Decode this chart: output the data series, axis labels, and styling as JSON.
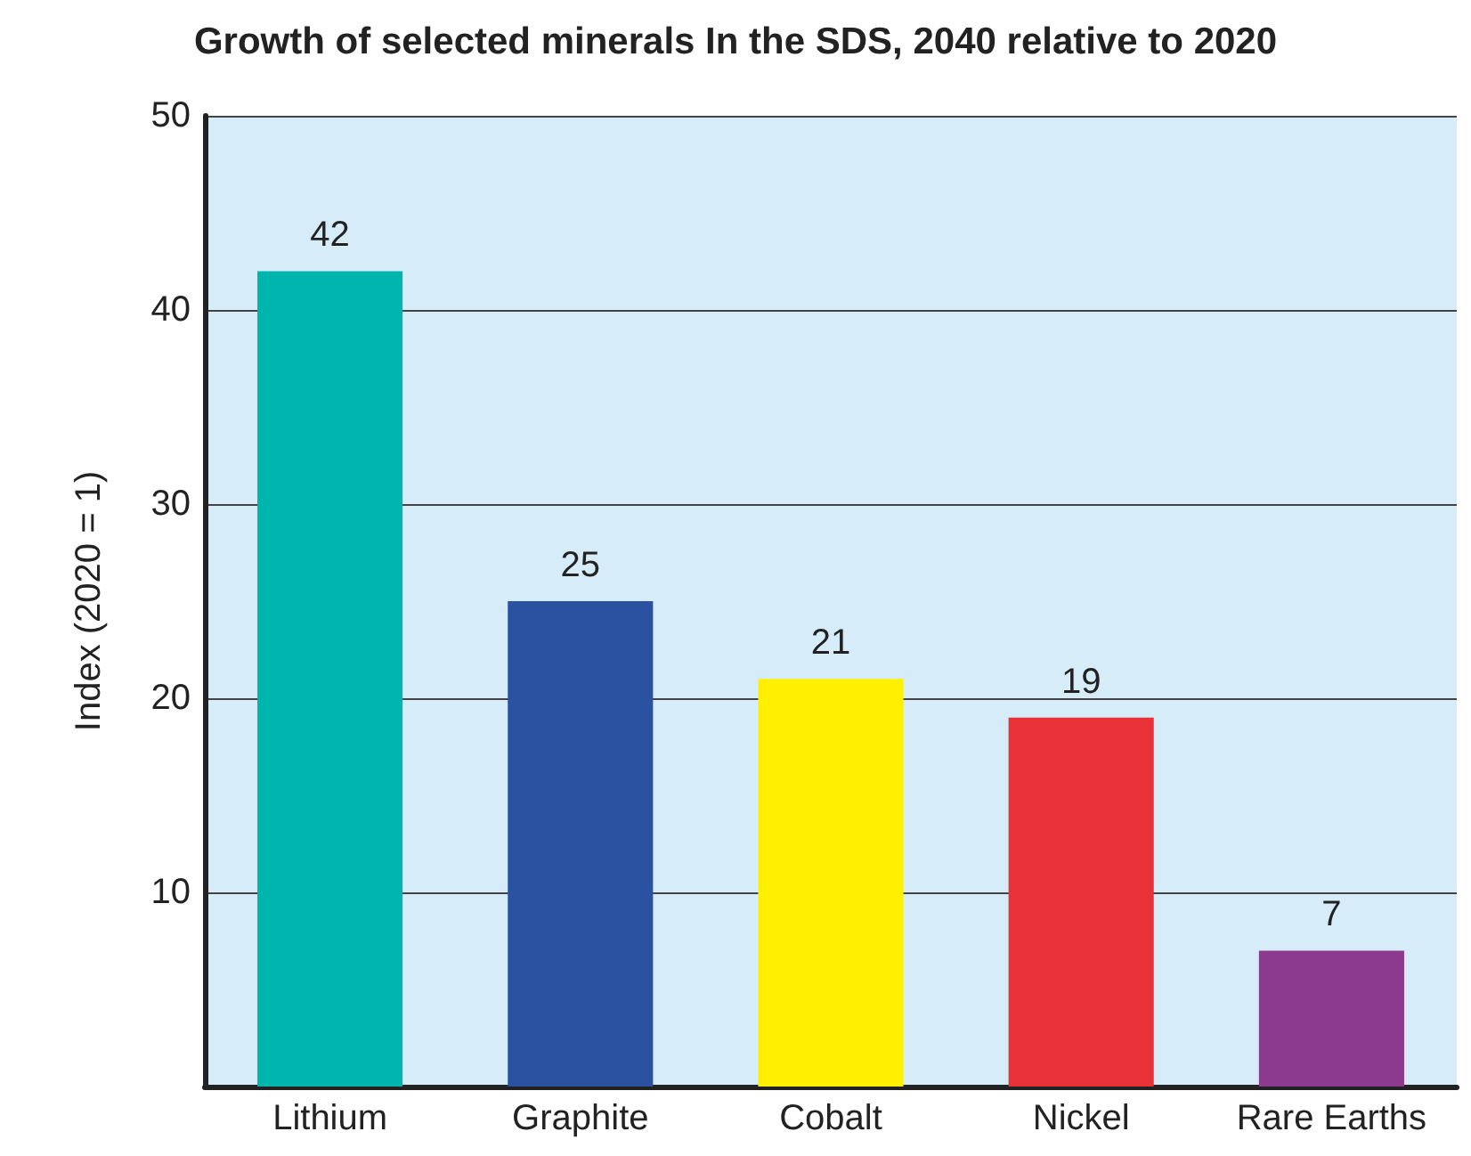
{
  "chart_data": {
    "type": "bar",
    "title": "Growth of selected minerals In the SDS, 2040 relative to 2020",
    "ylabel": "Index (2020 = 1)",
    "categories": [
      "Lithium",
      "Graphite",
      "Cobalt",
      "Nickel",
      "Rare Earths"
    ],
    "values": [
      42,
      25,
      21,
      19,
      7
    ],
    "colors": [
      "#00b5ad",
      "#2a52a0",
      "#fff000",
      "#e83237",
      "#8b3a8f"
    ],
    "ylim": [
      0,
      50
    ],
    "yticks": [
      {
        "value": 0,
        "label": null
      },
      10,
      20,
      30,
      40,
      50
    ],
    "grid": "y",
    "data_labels": true
  }
}
